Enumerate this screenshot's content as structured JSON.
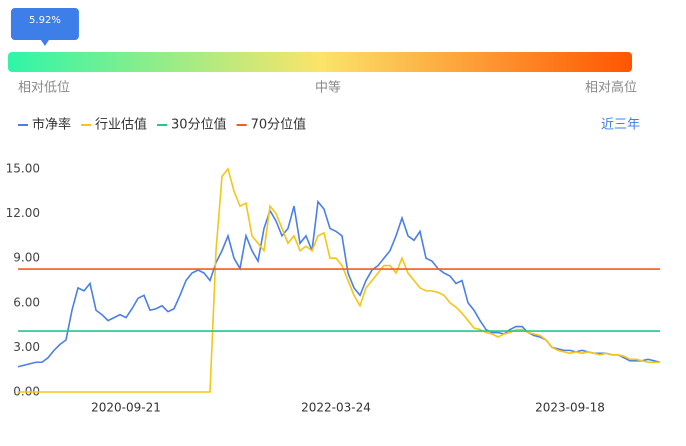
{
  "chart_data": {
    "type": "line",
    "indicator": {
      "value": 5.92,
      "label": "5.92%"
    },
    "scale_labels": [
      "相对低位",
      "中等",
      "相对高位"
    ],
    "range_button": "近三年",
    "xlim": [
      0,
      107
    ],
    "xticks": [
      {
        "value": 18,
        "label": "2020-09-21"
      },
      {
        "value": 53,
        "label": "2022-03-24"
      },
      {
        "value": 92,
        "label": "2023-09-18"
      }
    ],
    "ylim": [
      0,
      16
    ],
    "yticks": [
      {
        "value": 0,
        "label": "0.00"
      },
      {
        "value": 3,
        "label": "3.00"
      },
      {
        "value": 6,
        "label": "6.00"
      },
      {
        "value": 9,
        "label": "9.00"
      },
      {
        "value": 12,
        "label": "12.00"
      },
      {
        "value": 15,
        "label": "15.00"
      }
    ],
    "series": [
      {
        "name": "市净率",
        "color": "#4a7fe8",
        "values": [
          1.7,
          1.8,
          1.9,
          2.0,
          2.0,
          2.3,
          2.8,
          3.2,
          3.5,
          5.5,
          7.0,
          6.8,
          7.3,
          5.5,
          5.2,
          4.8,
          5.0,
          5.2,
          5.0,
          5.6,
          6.3,
          6.5,
          5.5,
          5.6,
          5.8,
          5.4,
          5.6,
          6.5,
          7.5,
          8.0,
          8.2,
          8.0,
          7.5,
          8.7,
          9.5,
          10.5,
          9.0,
          8.3,
          10.5,
          9.5,
          8.8,
          11.0,
          12.2,
          11.5,
          10.5,
          11.0,
          12.5,
          10.0,
          10.5,
          9.5,
          12.8,
          12.3,
          11.0,
          10.8,
          10.5,
          8.0,
          7.0,
          6.5,
          7.5,
          8.2,
          8.5,
          9.0,
          9.5,
          10.5,
          11.7,
          10.5,
          10.2,
          10.8,
          9.0,
          8.8,
          8.3,
          8.0,
          7.8,
          7.3,
          7.5,
          6.0,
          5.5,
          4.8,
          4.2,
          4.0,
          4.0,
          3.9,
          4.2,
          4.4,
          4.4,
          4.0,
          3.8,
          3.7,
          3.5,
          3.0,
          2.9,
          2.8,
          2.8,
          2.7,
          2.8,
          2.7,
          2.6,
          2.6,
          2.6,
          2.5,
          2.5,
          2.3,
          2.1,
          2.1,
          2.1,
          2.2,
          2.1,
          2.0
        ]
      },
      {
        "name": "行业估值",
        "color": "#f5c518",
        "values": [
          0,
          0,
          0,
          0,
          0,
          0,
          0,
          0,
          0,
          0,
          0,
          0,
          0,
          0,
          0,
          0,
          0,
          0,
          0,
          0,
          0,
          0,
          0,
          0,
          0,
          0,
          0,
          0,
          0,
          0,
          0,
          0,
          0,
          9.5,
          14.5,
          15.0,
          13.5,
          12.5,
          12.7,
          10.5,
          10.0,
          9.5,
          12.5,
          12.0,
          11.0,
          10.0,
          10.5,
          9.5,
          9.8,
          9.5,
          10.5,
          10.7,
          9.0,
          9.0,
          8.5,
          7.5,
          6.5,
          5.8,
          7.0,
          7.5,
          8.0,
          8.5,
          8.5,
          8.0,
          9.0,
          8.0,
          7.5,
          7.0,
          6.8,
          6.8,
          6.7,
          6.5,
          6.0,
          5.7,
          5.3,
          4.8,
          4.3,
          4.2,
          4.0,
          3.9,
          3.7,
          3.9,
          4.0,
          4.2,
          4.2,
          4.0,
          3.9,
          3.8,
          3.5,
          3.0,
          2.8,
          2.7,
          2.6,
          2.7,
          2.6,
          2.7,
          2.6,
          2.5,
          2.6,
          2.5,
          2.5,
          2.4,
          2.2,
          2.2,
          2.1,
          2.0,
          2.0,
          2.0
        ]
      },
      {
        "name": "30分位值",
        "color": "#1fc98b",
        "value": 4.1
      },
      {
        "name": "70分位值",
        "color": "#fa5a1e",
        "value": 8.27
      }
    ]
  }
}
